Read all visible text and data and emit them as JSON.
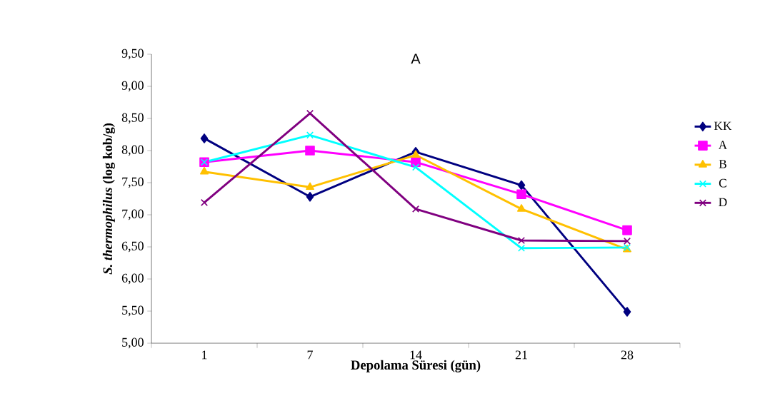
{
  "chart_data": {
    "type": "line",
    "title": "A",
    "xlabel": "Depolama Süresi (gün)",
    "ylabel": "*S. thermophilus* (log kob/g)",
    "categories": [
      "1",
      "7",
      "14",
      "21",
      "28"
    ],
    "series": [
      {
        "name": "KK",
        "color": "#000080",
        "marker": "diamond",
        "values": [
          8.19,
          7.28,
          7.98,
          7.46,
          5.49
        ]
      },
      {
        "name": "A",
        "color": "#ff00ff",
        "marker": "square",
        "values": [
          7.82,
          8.0,
          7.82,
          7.32,
          6.76
        ]
      },
      {
        "name": "B",
        "color": "#ffc000",
        "marker": "triangle",
        "values": [
          7.67,
          7.43,
          7.93,
          7.09,
          6.46
        ]
      },
      {
        "name": "C",
        "color": "#00ffff",
        "marker": "cross",
        "values": [
          7.82,
          8.24,
          7.74,
          6.48,
          6.49
        ]
      },
      {
        "name": "D",
        "color": "#800080",
        "marker": "cross",
        "values": [
          7.19,
          8.58,
          7.09,
          6.6,
          6.59
        ]
      }
    ],
    "ylim": [
      5,
      9.5
    ],
    "yticks": [
      {
        "value": 5,
        "label": "5,00"
      },
      {
        "value": 5.5,
        "label": "5,50"
      },
      {
        "value": 6,
        "label": "6,00"
      },
      {
        "value": 6.5,
        "label": "6,50"
      },
      {
        "value": 7,
        "label": "7,00"
      },
      {
        "value": 7.5,
        "label": "7,50"
      },
      {
        "value": 8,
        "label": "8,00"
      },
      {
        "value": 8.5,
        "label": "8,50"
      },
      {
        "value": 9,
        "label": "9,00"
      },
      {
        "value": 9.5,
        "label": "9,50"
      }
    ],
    "grid": false,
    "legend": "right",
    "line_style": "solid"
  }
}
